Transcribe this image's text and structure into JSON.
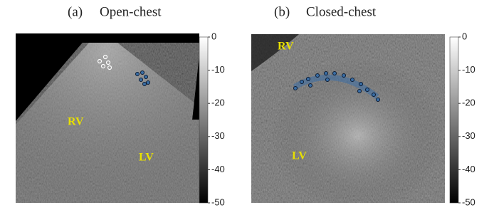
{
  "panels": [
    {
      "label": "(a)",
      "title": "Open-chest",
      "annotations": [
        "RV",
        "LV"
      ],
      "colorbar": {
        "lim": [
          -50,
          0
        ],
        "ticks": [
          0,
          -10,
          -20,
          -30,
          -40,
          -50
        ]
      }
    },
    {
      "label": "(b)",
      "title": "Closed-chest",
      "annotations": [
        "RV",
        "LV"
      ],
      "colorbar": {
        "lim": [
          -50,
          0
        ],
        "ticks": [
          0,
          -10,
          -20,
          -30,
          -40,
          -50
        ]
      }
    }
  ]
}
